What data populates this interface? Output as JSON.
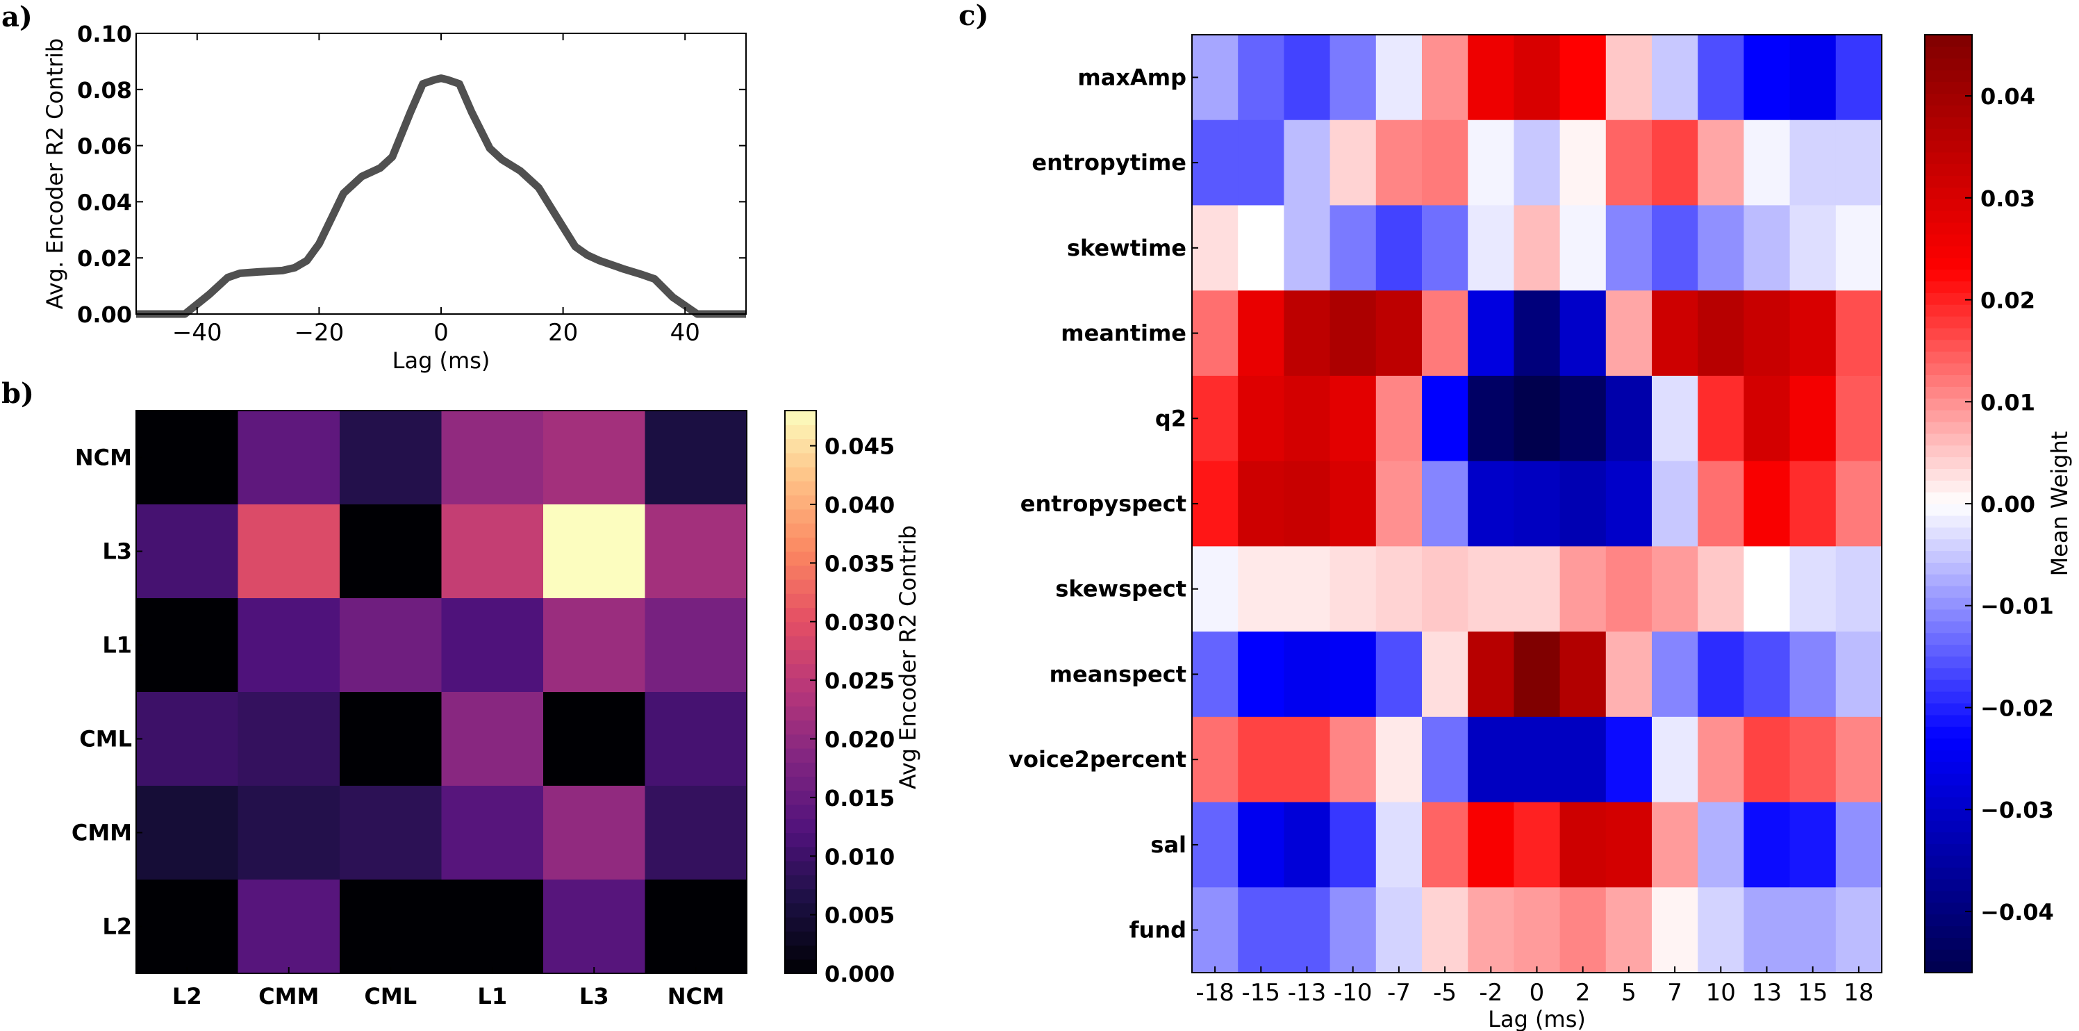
{
  "panel_labels": {
    "a": "a)",
    "b": "b)",
    "c": "c)"
  },
  "chart_data": [
    {
      "panel": "a",
      "type": "line",
      "title": "",
      "xlabel": "Lag (ms)",
      "ylabel": "Avg. Encoder R2 Contrib",
      "xlim": [
        -50,
        50
      ],
      "ylim": [
        0,
        0.1
      ],
      "xticks": [
        -40,
        -20,
        0,
        20,
        40
      ],
      "xtick_labels": [
        "−40",
        "−20",
        "0",
        "20",
        "40"
      ],
      "yticks": [
        0,
        0.02,
        0.04,
        0.06,
        0.08,
        0.1
      ],
      "ytick_labels": [
        "0.00",
        "0.02",
        "0.04",
        "0.06",
        "0.08",
        "0.10"
      ],
      "grid": false,
      "color": "#505050",
      "x": [
        -50,
        -42,
        -38,
        -35,
        -33,
        -30,
        -26,
        -24,
        -22,
        -20,
        -18,
        -16,
        -13,
        -10,
        -8,
        -5,
        -3,
        -1,
        0,
        1,
        3,
        5,
        8,
        10,
        13,
        16,
        18,
        20,
        22,
        24,
        26,
        30,
        33,
        35,
        38,
        42,
        50
      ],
      "y": [
        0,
        0,
        0.007,
        0.013,
        0.0145,
        0.015,
        0.0155,
        0.0165,
        0.019,
        0.025,
        0.034,
        0.043,
        0.049,
        0.052,
        0.056,
        0.072,
        0.082,
        0.0835,
        0.084,
        0.0835,
        0.082,
        0.072,
        0.059,
        0.055,
        0.051,
        0.045,
        0.038,
        0.031,
        0.024,
        0.021,
        0.019,
        0.016,
        0.014,
        0.0125,
        0.006,
        0,
        0
      ]
    },
    {
      "panel": "b",
      "type": "heatmap",
      "title": "",
      "x_categories": [
        "L2",
        "CMM",
        "CML",
        "L1",
        "L3",
        "NCM"
      ],
      "y_categories": [
        "NCM",
        "L3",
        "L1",
        "CML",
        "CMM",
        "L2"
      ],
      "values": [
        [
          0.0,
          0.014,
          0.007,
          0.02,
          0.022,
          0.006
        ],
        [
          0.011,
          0.029,
          0.0,
          0.026,
          0.048,
          0.022
        ],
        [
          0.0,
          0.012,
          0.016,
          0.012,
          0.021,
          0.017
        ],
        [
          0.01,
          0.009,
          0.0,
          0.019,
          0.0,
          0.011
        ],
        [
          0.005,
          0.007,
          0.008,
          0.013,
          0.02,
          0.009
        ],
        [
          0.0,
          0.013,
          0.0,
          0.0,
          0.013,
          0.0
        ]
      ],
      "colorbar": {
        "label": "Avg Encoder R2 Contrib",
        "range": [
          0,
          0.048
        ],
        "ticks": [
          0,
          0.005,
          0.01,
          0.015,
          0.02,
          0.025,
          0.03,
          0.035,
          0.04,
          0.045
        ],
        "tick_labels": [
          "0.000",
          "0.005",
          "0.010",
          "0.015",
          "0.020",
          "0.025",
          "0.030",
          "0.035",
          "0.040",
          "0.045"
        ],
        "colormap": "magma"
      }
    },
    {
      "panel": "c",
      "type": "heatmap",
      "title": "",
      "xlabel": "Lag (ms)",
      "x_categories": [
        "-18",
        "-15",
        "-13",
        "-10",
        "-7",
        "-5",
        "-2",
        "0",
        "2",
        "5",
        "7",
        "10",
        "13",
        "15",
        "18"
      ],
      "y_categories": [
        "maxAmp",
        "entropytime",
        "skewtime",
        "meantime",
        "q2",
        "entropyspect",
        "skewspect",
        "meanspect",
        "voice2percent",
        "sal",
        "fund"
      ],
      "values": [
        [
          -0.008,
          -0.014,
          -0.017,
          -0.012,
          -0.002,
          0.01,
          0.026,
          0.03,
          0.023,
          0.005,
          -0.005,
          -0.016,
          -0.023,
          -0.025,
          -0.018
        ],
        [
          -0.015,
          -0.015,
          -0.006,
          0.004,
          0.011,
          0.012,
          -0.001,
          -0.005,
          0.001,
          0.014,
          0.017,
          0.008,
          -0.001,
          -0.004,
          -0.004
        ],
        [
          0.003,
          0.0,
          -0.006,
          -0.012,
          -0.017,
          -0.013,
          -0.002,
          0.006,
          -0.001,
          -0.011,
          -0.015,
          -0.01,
          -0.006,
          -0.003,
          -0.001
        ],
        [
          0.013,
          0.027,
          0.035,
          0.038,
          0.035,
          0.012,
          -0.027,
          -0.04,
          -0.03,
          0.008,
          0.032,
          0.036,
          0.033,
          0.03,
          0.016
        ],
        [
          0.019,
          0.029,
          0.031,
          0.028,
          0.011,
          -0.023,
          -0.043,
          -0.046,
          -0.043,
          -0.034,
          -0.003,
          0.019,
          0.031,
          0.025,
          0.015
        ],
        [
          0.021,
          0.032,
          0.033,
          0.03,
          0.01,
          -0.011,
          -0.03,
          -0.031,
          -0.033,
          -0.03,
          -0.005,
          0.013,
          0.024,
          0.019,
          0.012
        ],
        [
          -0.001,
          0.002,
          0.002,
          0.003,
          0.004,
          0.005,
          0.004,
          0.004,
          0.009,
          0.011,
          0.009,
          0.005,
          0.0,
          -0.003,
          -0.004
        ],
        [
          -0.014,
          -0.023,
          -0.025,
          -0.024,
          -0.016,
          0.003,
          0.036,
          0.046,
          0.037,
          0.007,
          -0.011,
          -0.019,
          -0.016,
          -0.011,
          -0.006
        ],
        [
          0.013,
          0.017,
          0.017,
          0.011,
          0.002,
          -0.013,
          -0.031,
          -0.031,
          -0.031,
          -0.022,
          -0.002,
          0.01,
          0.017,
          0.015,
          0.011
        ],
        [
          -0.014,
          -0.025,
          -0.028,
          -0.018,
          -0.003,
          0.014,
          0.024,
          0.02,
          0.032,
          0.031,
          0.009,
          -0.007,
          -0.022,
          -0.021,
          -0.01
        ],
        [
          -0.01,
          -0.015,
          -0.015,
          -0.01,
          -0.004,
          0.004,
          0.008,
          0.009,
          0.011,
          0.008,
          0.001,
          -0.004,
          -0.008,
          -0.008,
          -0.006
        ]
      ],
      "colorbar": {
        "label": "Mean Weight",
        "range": [
          -0.046,
          0.046
        ],
        "ticks": [
          -0.04,
          -0.03,
          -0.02,
          -0.01,
          0,
          0.01,
          0.02,
          0.03,
          0.04
        ],
        "tick_labels": [
          "−0.04",
          "−0.03",
          "−0.02",
          "−0.01",
          "0.00",
          "0.01",
          "0.02",
          "0.03",
          "0.04"
        ],
        "colormap": "seismic"
      }
    }
  ]
}
